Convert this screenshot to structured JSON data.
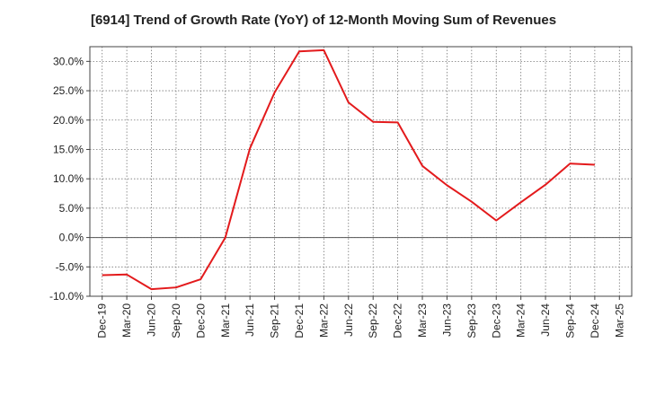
{
  "chart_data": {
    "type": "line",
    "title": "[6914]  Trend of Growth Rate (YoY) of 12-Month Moving Sum of Revenues",
    "xlabel": "",
    "ylabel": "",
    "ylim": [
      -10,
      32.5
    ],
    "yticks": [
      30,
      25,
      20,
      15,
      10,
      5,
      0,
      -5,
      -10
    ],
    "ytick_labels": [
      "30.0%",
      "25.0%",
      "20.0%",
      "15.0%",
      "10.0%",
      "5.0%",
      "0.0%",
      "-5.0%",
      "-10.0%"
    ],
    "x_tick_labels": [
      "Dec-19",
      "Mar-20",
      "Jun-20",
      "Sep-20",
      "Dec-20",
      "Mar-21",
      "Jun-21",
      "Sep-21",
      "Dec-21",
      "Mar-22",
      "Jun-22",
      "Sep-22",
      "Dec-22",
      "Mar-23",
      "Jun-23",
      "Sep-23",
      "Dec-23",
      "Mar-24",
      "Jun-24",
      "Sep-24",
      "Dec-24",
      "Mar-25"
    ],
    "grid": true,
    "series": [
      {
        "color": "#e31a1c",
        "x": [
          "Dec-19",
          "Mar-20",
          "Jun-20",
          "Sep-20",
          "Dec-20",
          "Mar-21",
          "Jun-21",
          "Sep-21",
          "Dec-21",
          "Mar-22",
          "Jun-22",
          "Sep-22",
          "Dec-22",
          "Mar-23",
          "Jun-23",
          "Sep-23",
          "Dec-23",
          "Mar-24",
          "Jun-24",
          "Sep-24",
          "Dec-24"
        ],
        "values": [
          -6.4,
          -6.3,
          -8.8,
          -8.5,
          -7.1,
          0.0,
          15.2,
          24.7,
          31.7,
          31.9,
          23.0,
          19.7,
          19.6,
          12.2,
          8.9,
          6.1,
          2.9,
          6.0,
          9.0,
          12.6,
          12.4
        ]
      }
    ]
  }
}
